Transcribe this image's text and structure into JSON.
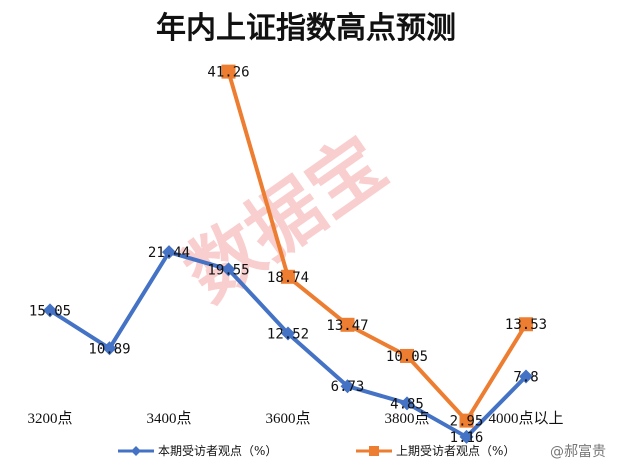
{
  "chart_data": {
    "type": "line",
    "title": "年内上证指数高点预测",
    "categories": [
      "3200点",
      "",
      "3400点",
      "",
      "3600点",
      "",
      "3800点",
      "",
      "4000点以上"
    ],
    "series": [
      {
        "name": "本期受访者观点（%）",
        "color": "#4472c4",
        "marker": "diamond",
        "x": [
          0,
          1,
          2,
          3,
          4,
          5,
          6,
          7,
          8
        ],
        "values": [
          15.05,
          10.89,
          21.44,
          19.55,
          12.52,
          6.73,
          4.85,
          1.16,
          7.8
        ],
        "labels": [
          "15.05",
          "10.89",
          "21.44",
          "19.55",
          "12.52",
          "6.73",
          "4.85",
          "1.16",
          "7.8"
        ]
      },
      {
        "name": "上期受访者观点（%）",
        "color": "#ed7d31",
        "marker": "square",
        "x": [
          3,
          4,
          5,
          6,
          7,
          8
        ],
        "values": [
          41.26,
          18.74,
          13.47,
          10.05,
          2.95,
          13.53
        ],
        "labels": [
          "41.26",
          "18.74",
          "13.47",
          "10.05",
          "2.95",
          "13.53"
        ]
      }
    ],
    "ylim": [
      0,
      45
    ],
    "grid": false,
    "legend_position": "bottom"
  },
  "watermark": "数据宝",
  "credit": "@郝富贵"
}
